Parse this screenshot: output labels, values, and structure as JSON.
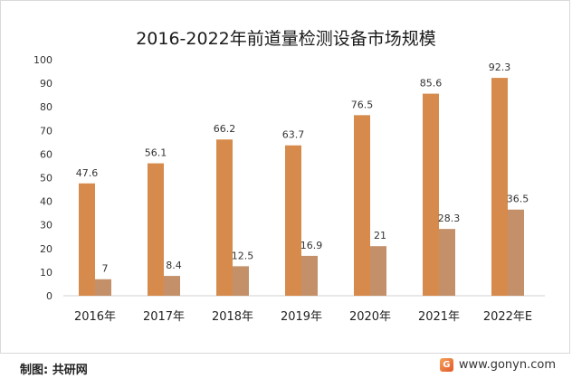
{
  "chart_data": {
    "type": "bar",
    "title": "2016-2022年前道量检测设备市场规模",
    "categories": [
      "2016年",
      "2017年",
      "2018年",
      "2019年",
      "2020年",
      "2021年",
      "2022年E"
    ],
    "series": [
      {
        "values": [
          47.6,
          56.1,
          66.2,
          63.7,
          76.5,
          85.6,
          92.3
        ],
        "color": "#d68b4c"
      },
      {
        "values": [
          7,
          8.4,
          12.5,
          16.9,
          21,
          28.3,
          36.5
        ],
        "color": "#c4906a"
      }
    ],
    "data_labels": [
      [
        "47.6",
        "56.1",
        "66.2",
        "63.7",
        "76.5",
        "85.6",
        "92.3"
      ],
      [
        "7",
        "8.4",
        "12.5",
        "16.9",
        "21",
        "28.3",
        "36.5"
      ]
    ],
    "ylim": [
      0,
      100
    ],
    "yticks": [
      "0",
      "10",
      "20",
      "30",
      "40",
      "50",
      "60",
      "70",
      "80",
      "90",
      "100"
    ],
    "grid": false,
    "legend": "none"
  },
  "footer": {
    "source": "制图: 共研网",
    "website": "www.gonyn.com",
    "logo_letter": "G"
  }
}
